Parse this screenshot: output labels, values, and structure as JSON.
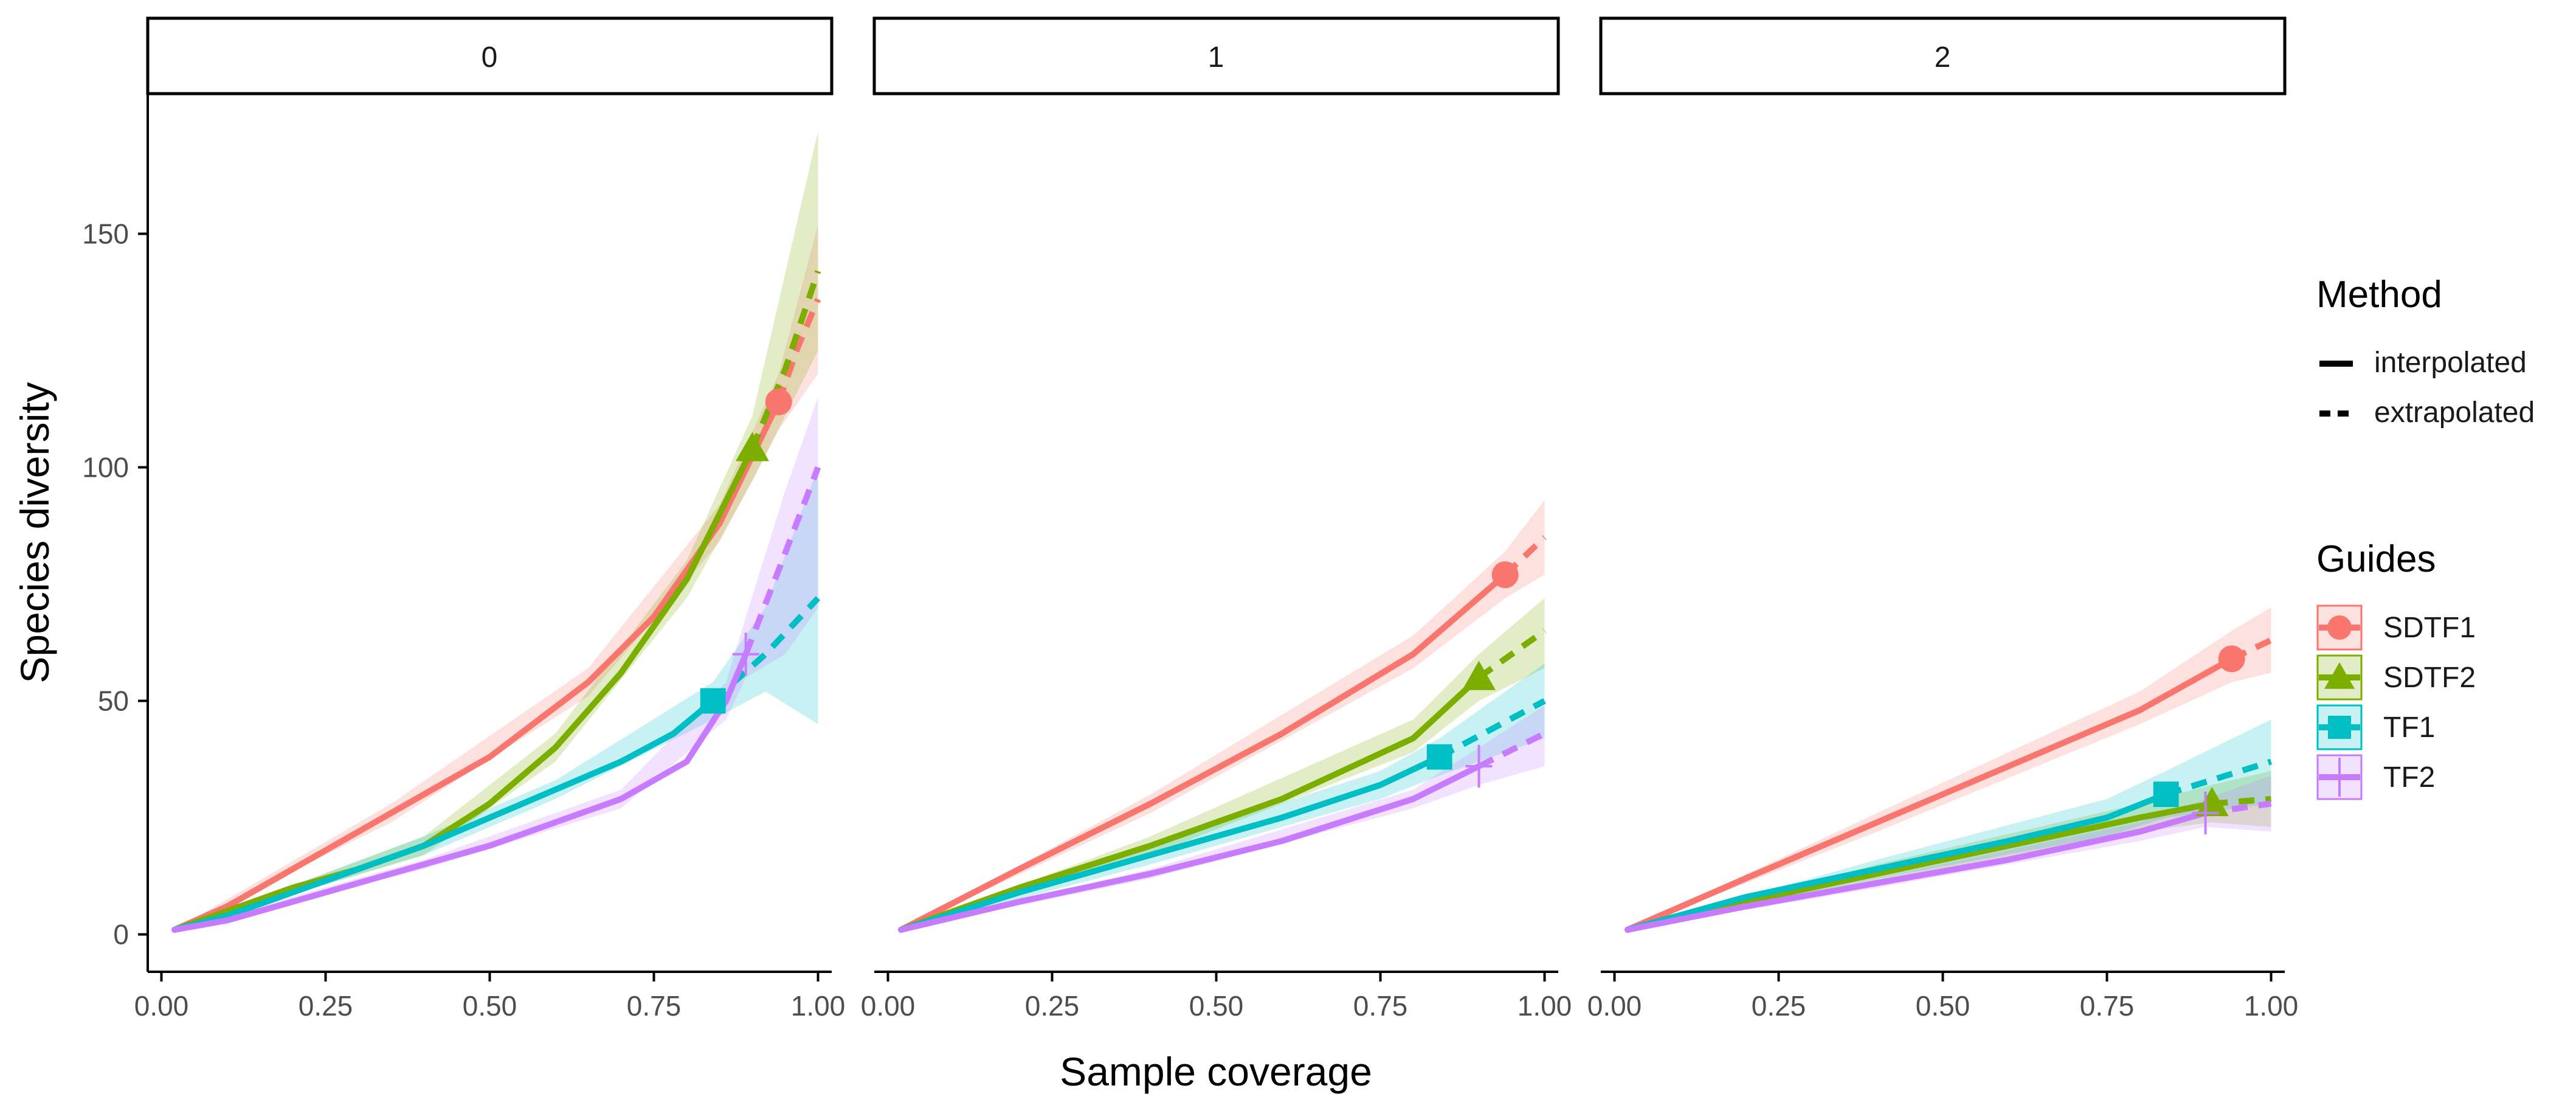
{
  "chart_data": {
    "type": "line",
    "facets": [
      "0",
      "1",
      "2"
    ],
    "xlabel": "Sample coverage",
    "ylabel": "Species diversity",
    "xlim": [
      0,
      1
    ],
    "ylim": [
      -8,
      180
    ],
    "xticks": [
      0.0,
      0.25,
      0.5,
      0.75,
      1.0
    ],
    "xtick_labels": [
      "0.00",
      "0.25",
      "0.50",
      "0.75",
      "1.00"
    ],
    "yticks": [
      0,
      50,
      100,
      150
    ],
    "ytick_labels": [
      "0",
      "50",
      "100",
      "150"
    ],
    "colors": {
      "SDTF1": "#F8766D",
      "SDTF2": "#7CAE00",
      "TF1": "#00BFC4",
      "TF2": "#C77CFF"
    },
    "legend": {
      "method_title": "Method",
      "method_items": [
        "interpolated",
        "extrapolated"
      ],
      "guides_title": "Guides",
      "guides_items": [
        "SDTF1",
        "SDTF2",
        "TF1",
        "TF2"
      ],
      "markers": [
        "circle",
        "triangle",
        "square",
        "cross"
      ]
    },
    "panels": [
      {
        "order": 0,
        "series": [
          {
            "name": "SDTF1",
            "interp": [
              [
                0.02,
                1
              ],
              [
                0.1,
                6
              ],
              [
                0.2,
                14
              ],
              [
                0.35,
                26
              ],
              [
                0.5,
                38
              ],
              [
                0.65,
                54
              ],
              [
                0.75,
                68
              ],
              [
                0.85,
                88
              ],
              [
                0.94,
                114
              ]
            ],
            "extrap": [
              [
                0.94,
                114
              ],
              [
                0.97,
                126
              ],
              [
                1.0,
                136
              ]
            ],
            "ref": [
              0.94,
              114
            ],
            "band": [
              [
                0.02,
                1,
                1
              ],
              [
                0.35,
                24,
                28
              ],
              [
                0.65,
                51,
                57
              ],
              [
                0.85,
                84,
                92
              ],
              [
                0.94,
                108,
                120
              ],
              [
                1.0,
                120,
                152
              ]
            ]
          },
          {
            "name": "SDTF2",
            "interp": [
              [
                0.02,
                1
              ],
              [
                0.1,
                5
              ],
              [
                0.2,
                10
              ],
              [
                0.3,
                14
              ],
              [
                0.4,
                19
              ],
              [
                0.5,
                28
              ],
              [
                0.6,
                40
              ],
              [
                0.7,
                56
              ],
              [
                0.8,
                76
              ],
              [
                0.9,
                104
              ]
            ],
            "extrap": [
              [
                0.9,
                104
              ],
              [
                0.95,
                121
              ],
              [
                1.0,
                142
              ]
            ],
            "ref": [
              0.9,
              104
            ],
            "band": [
              [
                0.02,
                1,
                1
              ],
              [
                0.4,
                17,
                21
              ],
              [
                0.6,
                37,
                43
              ],
              [
                0.8,
                72,
                80
              ],
              [
                0.9,
                97,
                111
              ],
              [
                1.0,
                125,
                172
              ]
            ]
          },
          {
            "name": "TF1",
            "interp": [
              [
                0.02,
                1
              ],
              [
                0.1,
                4
              ],
              [
                0.2,
                9
              ],
              [
                0.3,
                14
              ],
              [
                0.4,
                19
              ],
              [
                0.5,
                25
              ],
              [
                0.6,
                31
              ],
              [
                0.7,
                37
              ],
              [
                0.78,
                43
              ],
              [
                0.84,
                50
              ]
            ],
            "extrap": [
              [
                0.84,
                50
              ],
              [
                0.92,
                60
              ],
              [
                1.0,
                72
              ]
            ],
            "ref": [
              0.84,
              50
            ],
            "band": [
              [
                0.02,
                1,
                1
              ],
              [
                0.4,
                17,
                21
              ],
              [
                0.6,
                29,
                33
              ],
              [
                0.84,
                46,
                54
              ],
              [
                0.92,
                52,
                70
              ],
              [
                1.0,
                45,
                100
              ]
            ]
          },
          {
            "name": "TF2",
            "interp": [
              [
                0.02,
                1
              ],
              [
                0.1,
                3
              ],
              [
                0.2,
                7
              ],
              [
                0.3,
                11
              ],
              [
                0.4,
                15
              ],
              [
                0.5,
                19
              ],
              [
                0.6,
                24
              ],
              [
                0.7,
                29
              ],
              [
                0.8,
                37
              ],
              [
                0.86,
                50
              ],
              [
                0.89,
                60
              ]
            ],
            "extrap": [
              [
                0.89,
                60
              ],
              [
                0.94,
                78
              ],
              [
                1.0,
                100
              ]
            ],
            "ref": [
              0.89,
              60
            ],
            "band": [
              [
                0.02,
                1,
                1
              ],
              [
                0.4,
                14,
                16
              ],
              [
                0.7,
                27,
                31
              ],
              [
                0.86,
                46,
                54
              ],
              [
                0.89,
                55,
                68
              ],
              [
                0.95,
                60,
                95
              ],
              [
                1.0,
                70,
                115
              ]
            ]
          }
        ]
      },
      {
        "order": 1,
        "series": [
          {
            "name": "SDTF1",
            "interp": [
              [
                0.02,
                1
              ],
              [
                0.2,
                14
              ],
              [
                0.4,
                28
              ],
              [
                0.6,
                43
              ],
              [
                0.8,
                60
              ],
              [
                0.94,
                77
              ]
            ],
            "extrap": [
              [
                0.94,
                77
              ],
              [
                1.0,
                85
              ]
            ],
            "ref": [
              0.94,
              77
            ],
            "band": [
              [
                0.02,
                1,
                1
              ],
              [
                0.4,
                26,
                30
              ],
              [
                0.8,
                57,
                64
              ],
              [
                0.94,
                72,
                82
              ],
              [
                1.0,
                77,
                93
              ]
            ]
          },
          {
            "name": "SDTF2",
            "interp": [
              [
                0.02,
                1
              ],
              [
                0.2,
                10
              ],
              [
                0.4,
                19
              ],
              [
                0.6,
                29
              ],
              [
                0.8,
                42
              ],
              [
                0.9,
                55
              ]
            ],
            "extrap": [
              [
                0.9,
                55
              ],
              [
                1.0,
                65
              ]
            ],
            "ref": [
              0.9,
              55
            ],
            "band": [
              [
                0.02,
                1,
                1
              ],
              [
                0.4,
                17,
                21
              ],
              [
                0.8,
                39,
                46
              ],
              [
                0.9,
                50,
                60
              ],
              [
                1.0,
                57,
                72
              ]
            ]
          },
          {
            "name": "TF1",
            "interp": [
              [
                0.02,
                1
              ],
              [
                0.2,
                9
              ],
              [
                0.4,
                17
              ],
              [
                0.6,
                25
              ],
              [
                0.75,
                32
              ],
              [
                0.84,
                38
              ]
            ],
            "extrap": [
              [
                0.84,
                38
              ],
              [
                1.0,
                50
              ]
            ],
            "ref": [
              0.84,
              38
            ],
            "band": [
              [
                0.02,
                1,
                1
              ],
              [
                0.4,
                15,
                19
              ],
              [
                0.75,
                29,
                35
              ],
              [
                0.84,
                34,
                42
              ],
              [
                1.0,
                42,
                58
              ]
            ]
          },
          {
            "name": "TF2",
            "interp": [
              [
                0.02,
                1
              ],
              [
                0.2,
                7
              ],
              [
                0.4,
                13
              ],
              [
                0.6,
                20
              ],
              [
                0.8,
                29
              ],
              [
                0.9,
                36
              ]
            ],
            "extrap": [
              [
                0.9,
                36
              ],
              [
                1.0,
                43
              ]
            ],
            "ref": [
              0.9,
              36
            ],
            "band": [
              [
                0.02,
                1,
                1
              ],
              [
                0.4,
                12,
                14
              ],
              [
                0.8,
                27,
                31
              ],
              [
                0.9,
                32,
                40
              ],
              [
                1.0,
                36,
                49
              ]
            ]
          }
        ]
      },
      {
        "order": 2,
        "series": [
          {
            "name": "SDTF1",
            "interp": [
              [
                0.02,
                1
              ],
              [
                0.2,
                12
              ],
              [
                0.4,
                24
              ],
              [
                0.6,
                36
              ],
              [
                0.8,
                48
              ],
              [
                0.94,
                59
              ]
            ],
            "extrap": [
              [
                0.94,
                59
              ],
              [
                1.0,
                63
              ]
            ],
            "ref": [
              0.94,
              59
            ],
            "band": [
              [
                0.02,
                1,
                1
              ],
              [
                0.4,
                22,
                26
              ],
              [
                0.8,
                45,
                52
              ],
              [
                0.94,
                54,
                65
              ],
              [
                1.0,
                56,
                70
              ]
            ]
          },
          {
            "name": "SDTF2",
            "interp": [
              [
                0.02,
                1
              ],
              [
                0.2,
                7
              ],
              [
                0.4,
                13
              ],
              [
                0.6,
                19
              ],
              [
                0.8,
                25
              ],
              [
                0.91,
                28
              ]
            ],
            "extrap": [
              [
                0.91,
                28
              ],
              [
                1.0,
                29
              ]
            ],
            "ref": [
              0.91,
              28
            ],
            "band": [
              [
                0.02,
                1,
                1
              ],
              [
                0.4,
                11,
                15
              ],
              [
                0.8,
                22,
                28
              ],
              [
                0.91,
                24,
                32
              ],
              [
                1.0,
                23,
                35
              ]
            ]
          },
          {
            "name": "TF1",
            "interp": [
              [
                0.02,
                1
              ],
              [
                0.2,
                8
              ],
              [
                0.4,
                14
              ],
              [
                0.6,
                20
              ],
              [
                0.75,
                25
              ],
              [
                0.84,
                30
              ]
            ],
            "extrap": [
              [
                0.84,
                30
              ],
              [
                1.0,
                37
              ]
            ],
            "ref": [
              0.84,
              30
            ],
            "band": [
              [
                0.02,
                1,
                1
              ],
              [
                0.4,
                12,
                16
              ],
              [
                0.75,
                21,
                29
              ],
              [
                0.84,
                25,
                35
              ],
              [
                1.0,
                28,
                46
              ]
            ]
          },
          {
            "name": "TF2",
            "interp": [
              [
                0.02,
                1
              ],
              [
                0.2,
                6
              ],
              [
                0.4,
                11
              ],
              [
                0.6,
                16
              ],
              [
                0.8,
                22
              ],
              [
                0.9,
                26
              ]
            ],
            "extrap": [
              [
                0.9,
                26
              ],
              [
                1.0,
                28
              ]
            ],
            "ref": [
              0.9,
              26
            ],
            "band": [
              [
                0.02,
                1,
                1
              ],
              [
                0.4,
                10,
                12
              ],
              [
                0.8,
                20,
                24
              ],
              [
                0.9,
                23,
                29
              ],
              [
                1.0,
                22,
                34
              ]
            ]
          }
        ]
      }
    ]
  }
}
